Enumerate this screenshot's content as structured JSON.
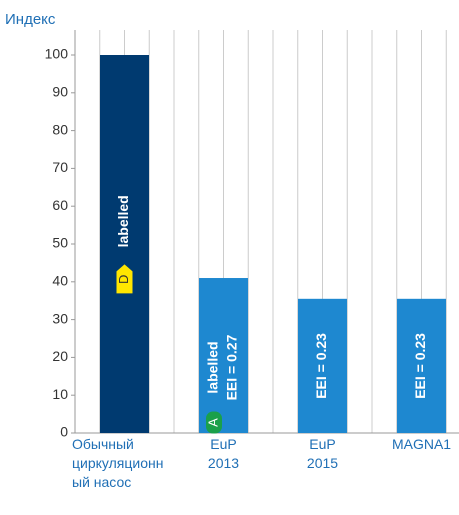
{
  "chart_data": {
    "type": "bar",
    "y_label": "Индекс",
    "categories": [
      "Обычный циркуляционный насос",
      "EuP 2013",
      "EuP 2015",
      "MAGNA1"
    ],
    "values": [
      100,
      41,
      35.5,
      35.5
    ],
    "colors": [
      "#003a70",
      "#1e88d0",
      "#1e88d0",
      "#1e88d0"
    ],
    "bar_labels": [
      [
        "labelled"
      ],
      [
        "labelled",
        "EEI = 0.27"
      ],
      [
        "EEI = 0.23"
      ],
      [
        "EEI = 0.23"
      ]
    ],
    "badges": [
      "D",
      "A",
      null,
      null
    ],
    "badge_colors": [
      "#ffe600",
      "#1aa04a",
      null,
      null
    ],
    "ylim": [
      0,
      100
    ],
    "yticks": [
      0,
      10,
      20,
      30,
      40,
      50,
      60,
      70,
      80,
      90,
      100
    ]
  }
}
